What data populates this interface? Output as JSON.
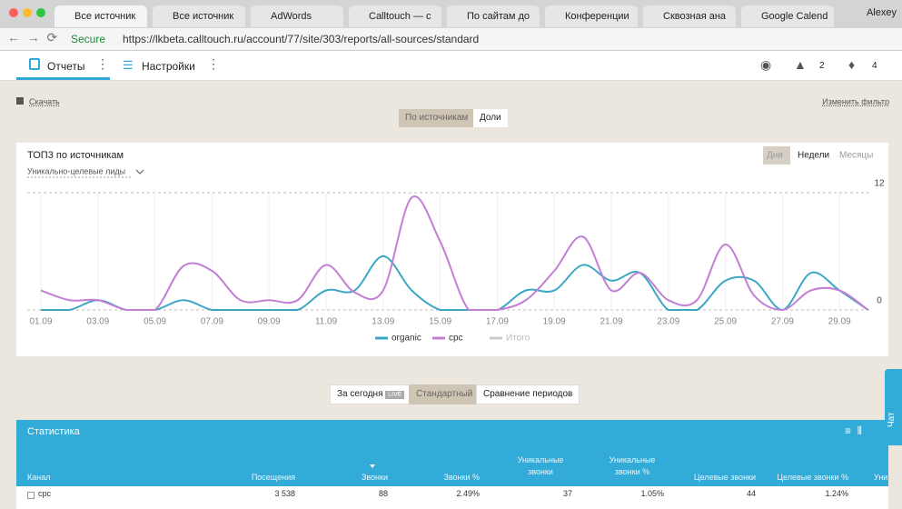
{
  "browser": {
    "tabs": [
      "Все источник",
      "Все источник",
      "AdWords",
      "Calltouch — с",
      "По сайтам до",
      "Конференции",
      "Сквозная ана",
      "Google Calend"
    ],
    "profile": "Alexey",
    "secure": "Secure",
    "url": "https://lkbeta.calltouch.ru/account/77/site/303/reports/all-sources/standard"
  },
  "nav": {
    "reports": "Отчеты",
    "settings": "Настройки",
    "courses_count": 2,
    "notifications_count": 4
  },
  "toolbar": {
    "download": "Скачать",
    "filter": "Изменить фильтр",
    "view_tabs": [
      "По источникам",
      "Доли"
    ]
  },
  "chart_data": {
    "type": "line",
    "title": "ТОП3 по источникам",
    "subtitle": "Уникально-целевые лиды",
    "period_tabs": [
      "Дни",
      "Недели",
      "Месяцы"
    ],
    "categories": [
      "01.09",
      null,
      "03.09",
      null,
      "05.09",
      null,
      "07.09",
      null,
      "09.09",
      null,
      "11.09",
      null,
      "13.09",
      null,
      "15.09",
      null,
      "17.09",
      null,
      "19.09",
      null,
      "21.09",
      null,
      "23.09",
      null,
      "25.09",
      null,
      "27.09",
      null,
      "29.09",
      null
    ],
    "series": [
      {
        "name": "organic",
        "color": "#3ba7c4",
        "values": [
          0,
          0,
          1,
          0,
          0,
          1,
          0,
          0,
          0,
          0,
          2,
          2,
          5.5,
          2,
          0,
          0,
          0,
          2,
          2,
          4.6,
          3,
          3.8,
          0,
          0,
          3,
          3,
          0,
          3.8,
          2,
          0
        ]
      },
      {
        "name": "cpc",
        "color": "#c27fd3",
        "values": [
          2,
          1,
          1,
          0,
          0,
          4.5,
          4,
          1,
          1,
          1,
          4.6,
          1.8,
          2,
          11.5,
          7,
          0,
          0,
          1,
          4,
          7.5,
          2,
          3.8,
          1,
          1,
          6.7,
          1.5,
          0,
          2,
          2,
          0
        ]
      }
    ],
    "inactive_legend": {
      "name": "Итого",
      "color": "#cccccc"
    },
    "ylim": [
      0,
      12
    ],
    "yticks": [
      0,
      12
    ],
    "grid": true
  },
  "period_buttons": [
    "За сегодня",
    "Стандартный",
    "Сравнение периодов"
  ],
  "live": "LIVE",
  "stats": {
    "title": "Статистика",
    "columns": [
      "Канал",
      "Посещения",
      "Звонки",
      "Звонки %",
      "Уникальные звонки",
      "Уникальные звонки %",
      "Целевые звонки",
      "Целевые звонки %",
      "Уни"
    ],
    "rows": [
      [
        "cpc",
        "3 538",
        "88",
        "2.49%",
        "37",
        "1.05%",
        "44",
        "1.24%"
      ]
    ]
  },
  "chat": "Чат"
}
